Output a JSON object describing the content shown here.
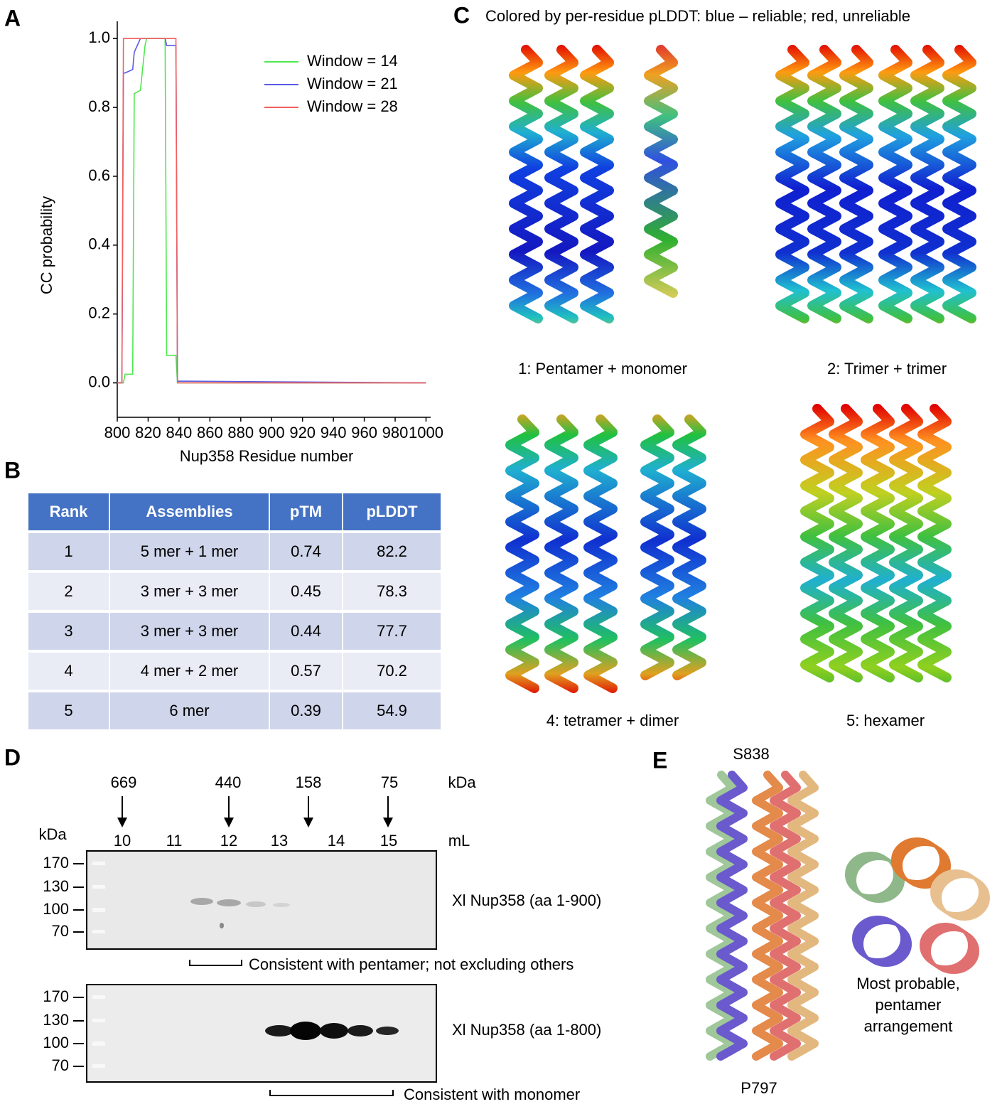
{
  "chart_data": {
    "type": "line",
    "panel_label": "A",
    "xlabel": "Nup358 Residue number",
    "ylabel": "CC probability",
    "x": [
      800,
      803,
      804,
      805,
      810,
      811,
      815,
      818,
      819,
      831,
      832,
      838,
      839,
      845,
      1000
    ],
    "series": [
      {
        "name": "Window = 14",
        "color": "#4ee84e",
        "values": [
          0,
          0,
          0,
          0.025,
          0.025,
          0.84,
          0.85,
          0.98,
          1,
          1,
          0.08,
          0.08,
          0,
          0,
          0
        ]
      },
      {
        "name": "Window = 21",
        "color": "#5a5ae6",
        "values": [
          0,
          0,
          0.9,
          0.9,
          0.91,
          0.96,
          1,
          1,
          1,
          1,
          0.98,
          0.98,
          0.005,
          0.005,
          0
        ]
      },
      {
        "name": "Window = 28",
        "color": "#f06060",
        "values": [
          0,
          0,
          1,
          1,
          1,
          1,
          1,
          1,
          1,
          1,
          1,
          1,
          0,
          0,
          0
        ]
      }
    ],
    "xlim": [
      800,
      1003
    ],
    "ylim": [
      -0.1,
      1.05
    ],
    "xticks": [
      800,
      820,
      840,
      860,
      880,
      900,
      920,
      940,
      960,
      980,
      1000
    ],
    "yticks": [
      {
        "value": 0,
        "label": "0.0"
      },
      0.2,
      0.4,
      0.6,
      0.8,
      {
        "value": 1,
        "label": "1.0"
      }
    ],
    "legend": "upper right"
  },
  "table": {
    "panel_label": "B",
    "header": [
      "Rank",
      "Assemblies",
      "pTM",
      "pLDDT"
    ],
    "rows": [
      [
        "1",
        "5 mer + 1 mer",
        "0.74",
        "82.2"
      ],
      [
        "2",
        "3 mer + 3 mer",
        "0.45",
        "78.3"
      ],
      [
        "3",
        "3 mer + 3 mer",
        "0.44",
        "77.7"
      ],
      [
        "4",
        "4 mer + 2 mer",
        "0.57",
        "70.2"
      ],
      [
        "5",
        "6 mer",
        "0.39",
        "54.9"
      ]
    ]
  },
  "models": {
    "panel_label": "C",
    "title": "Colored by per-residue pLDDT: blue – reliable; red, unreliable",
    "captions": [
      "1: Pentamer + monomer",
      "2: Trimer + trimer",
      "4: tetramer + dimer",
      "5: hexamer"
    ]
  },
  "gel": {
    "panel_label": "D",
    "standards": [
      "669",
      "440",
      "158",
      "75"
    ],
    "standards_unit": "kDa",
    "fractions": [
      "10",
      "11",
      "12",
      "13",
      "14",
      "15"
    ],
    "fractions_unit": "mL",
    "ladder_unit": "kDa",
    "ladder": [
      "170",
      "130",
      "100",
      "70"
    ],
    "blots": [
      {
        "label": "Xl Nup358 (aa 1-900)",
        "note": "Consistent with pentamer; not excluding others"
      },
      {
        "label": "Xl Nup358 (aa 1-800)",
        "note": "Consistent with monomer"
      }
    ]
  },
  "structure": {
    "panel_label": "E",
    "top_residue": "S838",
    "bottom_residue": "P797",
    "caption": [
      "Most probable,",
      "pentamer",
      "arrangement"
    ]
  }
}
